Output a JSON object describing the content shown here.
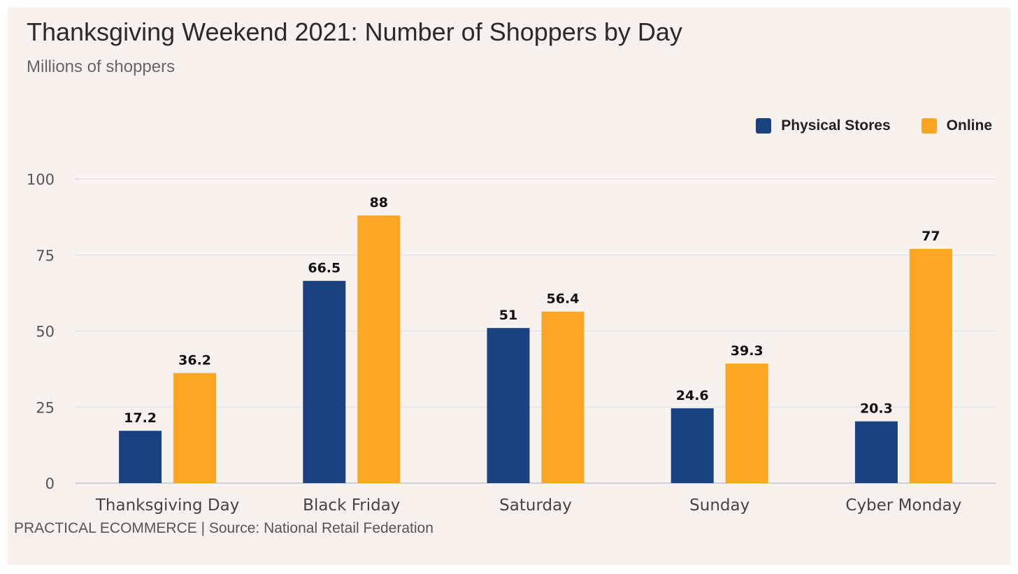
{
  "colors": {
    "physical": "#1a427f",
    "online": "#fba623",
    "grid": "#e0dcd9",
    "baseline": "#b9c1e0"
  },
  "chart_data": {
    "type": "bar",
    "title": "Thanksgiving Weekend 2021: Number of Shoppers by Day",
    "subtitle": "Millions of shoppers",
    "categories": [
      "Thanksgiving Day",
      "Black Friday",
      "Saturday",
      "Sunday",
      "Cyber Monday"
    ],
    "series": [
      {
        "name": "Physical Stores",
        "color": "#1a427f",
        "values": [
          17.2,
          66.5,
          51,
          24.6,
          20.3
        ],
        "labels": [
          "17.2",
          "66.5",
          "51",
          "24.6",
          "20.3"
        ]
      },
      {
        "name": "Online",
        "color": "#fba623",
        "values": [
          36.2,
          88,
          56.4,
          39.3,
          77
        ],
        "labels": [
          "36.2",
          "88",
          "56.4",
          "39.3",
          "77"
        ]
      }
    ],
    "ylim": [
      0,
      100
    ],
    "yticks": [
      "0",
      "25",
      "50",
      "75",
      "100"
    ],
    "grid": true,
    "legend_position": "top-right",
    "xlabel": "",
    "ylabel": ""
  },
  "footer": "PRACTICAL ECOMMERCE | Source: National Retail Federation"
}
